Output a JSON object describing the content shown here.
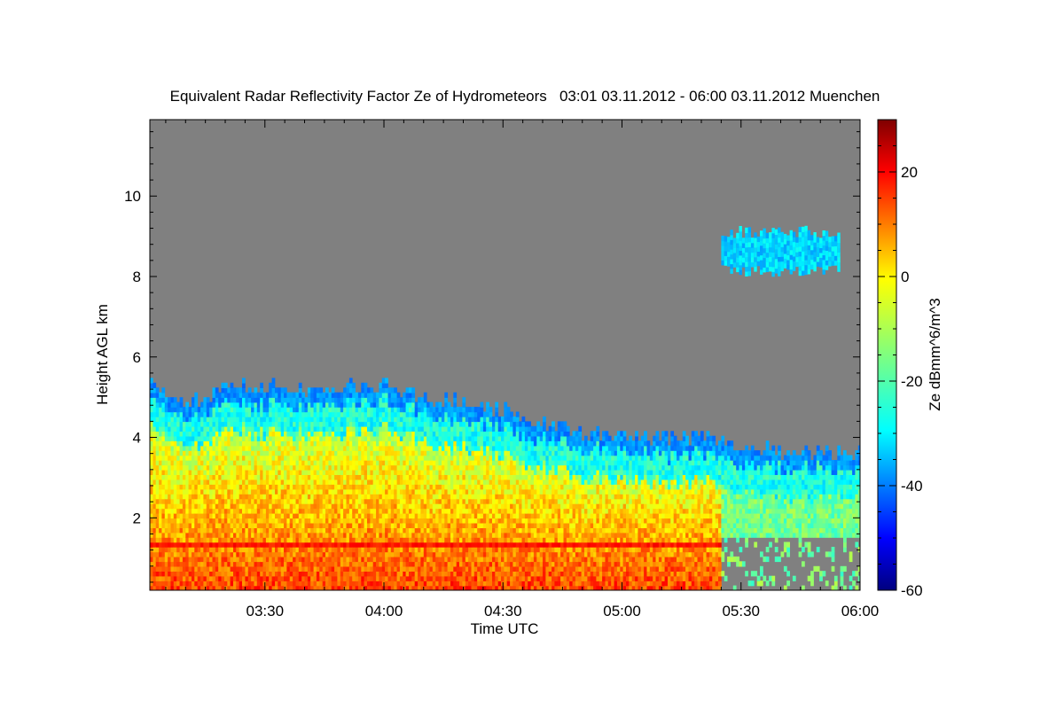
{
  "chart_data": {
    "type": "heatmap",
    "title": "Equivalent Radar Reflectivity Factor Ze of Hydrometeors   03:01 03.11.2012 - 06:00 03.11.2012 Muenchen",
    "xlabel": "Time UTC",
    "ylabel": "Height AGL km",
    "colorbar_label": "Ze dBmm^6/m^3",
    "x_range": [
      "03:01",
      "06:00"
    ],
    "x_ticks": [
      "03:30",
      "04:00",
      "04:30",
      "05:00",
      "05:30",
      "06:00"
    ],
    "ylim": [
      0.2,
      11.9
    ],
    "y_ticks": [
      2,
      4,
      6,
      8,
      10
    ],
    "colorbar_range": [
      -60,
      30
    ],
    "colorbar_ticks": [
      20,
      0,
      -20,
      -40,
      -60
    ],
    "colormap": "jet",
    "background_color": "#808080",
    "echo_top_km": [
      {
        "time": "03:01",
        "top": 5.4
      },
      {
        "time": "03:10",
        "top": 4.7
      },
      {
        "time": "03:20",
        "top": 5.2
      },
      {
        "time": "03:30",
        "top": 5.2
      },
      {
        "time": "03:40",
        "top": 5.1
      },
      {
        "time": "03:50",
        "top": 5.2
      },
      {
        "time": "04:00",
        "top": 5.3
      },
      {
        "time": "04:10",
        "top": 4.9
      },
      {
        "time": "04:20",
        "top": 4.8
      },
      {
        "time": "04:30",
        "top": 4.6
      },
      {
        "time": "04:40",
        "top": 4.3
      },
      {
        "time": "04:50",
        "top": 4.1
      },
      {
        "time": "05:00",
        "top": 4.0
      },
      {
        "time": "05:10",
        "top": 3.9
      },
      {
        "time": "05:20",
        "top": 4.0
      },
      {
        "time": "05:30",
        "top": 3.7
      },
      {
        "time": "05:40",
        "top": 3.6
      },
      {
        "time": "05:50",
        "top": 3.6
      },
      {
        "time": "06:00",
        "top": 3.6
      }
    ],
    "melting_layer_km": 1.3,
    "upper_cloud": {
      "time_start": "05:25",
      "time_end": "05:55",
      "bottom_km": 8.0,
      "top_km": 9.2,
      "ze_dbz": -30
    }
  }
}
